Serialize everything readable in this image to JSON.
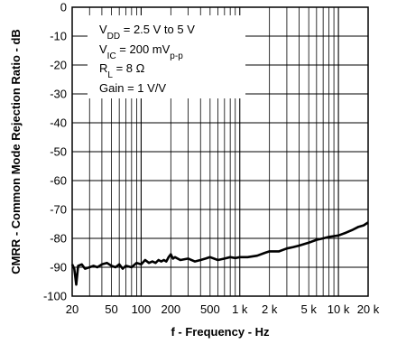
{
  "chart_data": {
    "type": "line",
    "xlabel": "f - Frequency - Hz",
    "ylabel": "CMRR - Common Mode Rejection Ratio - dB",
    "x_scale": "log",
    "xlim": [
      20,
      20000
    ],
    "ylim": [
      -100,
      0
    ],
    "grid": true,
    "x_ticks": [
      {
        "value": 20,
        "label": "20"
      },
      {
        "value": 50,
        "label": "50"
      },
      {
        "value": 100,
        "label": "100"
      },
      {
        "value": 200,
        "label": "200"
      },
      {
        "value": 500,
        "label": "500"
      },
      {
        "value": 1000,
        "label": "1 k"
      },
      {
        "value": 2000,
        "label": "2 k"
      },
      {
        "value": 5000,
        "label": "5 k"
      },
      {
        "value": 10000,
        "label": "10 k"
      },
      {
        "value": 20000,
        "label": "20 k"
      }
    ],
    "y_ticks": [
      {
        "value": 0,
        "label": "0"
      },
      {
        "value": -10,
        "label": "-10"
      },
      {
        "value": -20,
        "label": "-20"
      },
      {
        "value": -30,
        "label": "-30"
      },
      {
        "value": -40,
        "label": "-40"
      },
      {
        "value": -50,
        "label": "-50"
      },
      {
        "value": -60,
        "label": "-60"
      },
      {
        "value": -70,
        "label": "-70"
      },
      {
        "value": -80,
        "label": "-80"
      },
      {
        "value": -90,
        "label": "-90"
      },
      {
        "value": -100,
        "label": "-100"
      }
    ],
    "annotation_lines": [
      [
        {
          "t": "V"
        },
        {
          "t": "DD",
          "sub": true
        },
        {
          "t": " = 2.5 V to 5 V"
        }
      ],
      [
        {
          "t": "V"
        },
        {
          "t": "IC",
          "sub": true
        },
        {
          "t": " = 200  mV"
        },
        {
          "t": "p-p",
          "sub": true
        }
      ],
      [
        {
          "t": "R"
        },
        {
          "t": "L",
          "sub": true
        },
        {
          "t": " = 8 Ω"
        }
      ],
      [
        {
          "t": "Gain = 1 V/V"
        }
      ]
    ],
    "series": [
      {
        "color": "#000000",
        "points": [
          [
            20,
            -89
          ],
          [
            21,
            -90.5
          ],
          [
            22,
            -96
          ],
          [
            23,
            -89.5
          ],
          [
            25,
            -89
          ],
          [
            27,
            -90.5
          ],
          [
            30,
            -90
          ],
          [
            33,
            -89.5
          ],
          [
            36,
            -90
          ],
          [
            40,
            -89
          ],
          [
            45,
            -88.5
          ],
          [
            50,
            -89.5
          ],
          [
            55,
            -90
          ],
          [
            60,
            -89
          ],
          [
            65,
            -90.5
          ],
          [
            70,
            -89.5
          ],
          [
            80,
            -90
          ],
          [
            90,
            -88.5
          ],
          [
            100,
            -89
          ],
          [
            110,
            -87.5
          ],
          [
            120,
            -88.5
          ],
          [
            130,
            -88
          ],
          [
            140,
            -88.5
          ],
          [
            150,
            -87.5
          ],
          [
            160,
            -88
          ],
          [
            170,
            -87.5
          ],
          [
            180,
            -88
          ],
          [
            190,
            -86.5
          ],
          [
            200,
            -85.5
          ],
          [
            210,
            -87
          ],
          [
            220,
            -86.5
          ],
          [
            250,
            -87.5
          ],
          [
            300,
            -87
          ],
          [
            350,
            -88
          ],
          [
            400,
            -87.5
          ],
          [
            450,
            -87
          ],
          [
            500,
            -86.5
          ],
          [
            600,
            -87.5
          ],
          [
            700,
            -87
          ],
          [
            800,
            -86.5
          ],
          [
            900,
            -86.8
          ],
          [
            1000,
            -86.5
          ],
          [
            1200,
            -86.5
          ],
          [
            1500,
            -86
          ],
          [
            1800,
            -85
          ],
          [
            2000,
            -84.5
          ],
          [
            2500,
            -84.5
          ],
          [
            3000,
            -83.5
          ],
          [
            3500,
            -83
          ],
          [
            4000,
            -82.5
          ],
          [
            5000,
            -81.5
          ],
          [
            6000,
            -80.5
          ],
          [
            7000,
            -80
          ],
          [
            8000,
            -79.5
          ],
          [
            10000,
            -79
          ],
          [
            12000,
            -78
          ],
          [
            14000,
            -77
          ],
          [
            16000,
            -76
          ],
          [
            18000,
            -75.5
          ],
          [
            20000,
            -74.5
          ]
        ]
      }
    ]
  }
}
